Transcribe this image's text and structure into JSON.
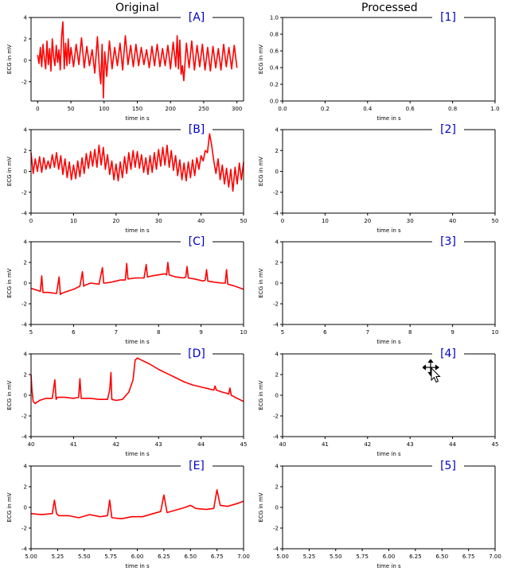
{
  "columns": {
    "left": "Original",
    "right": "Processed"
  },
  "colors": {
    "signal": "#ff0000",
    "panel_label": "#0000cc",
    "axis": "#000000"
  },
  "cursor": {
    "icon": "move-cursor-icon"
  },
  "panels": [
    {
      "label_left": "[A]",
      "label_right": "[1]",
      "xlabel": "time in s",
      "ylabel": "ECG in mV",
      "left_xticks": [
        0,
        50,
        100,
        150,
        200,
        250,
        300
      ],
      "left_xlim": [
        -10,
        310
      ],
      "left_yticks": [
        -2,
        0,
        2,
        4
      ],
      "left_ylim": [
        -3.8,
        4
      ],
      "right_xticks": [
        "0.0",
        "0.2",
        "0.4",
        "0.6",
        "0.8",
        "1.0"
      ],
      "right_xlim": [
        0,
        1
      ],
      "right_yticks": [
        "0.0",
        "0.2",
        "0.4",
        "0.6",
        "0.8",
        "1.0"
      ],
      "right_ylim": [
        0,
        1
      ]
    },
    {
      "label_left": "[B]",
      "label_right": "[2]",
      "xlabel": "time in s",
      "ylabel": "ECG in mV",
      "left_xticks": [
        0,
        10,
        20,
        30,
        40,
        50
      ],
      "left_xlim": [
        0,
        50
      ],
      "left_yticks": [
        -4,
        -2,
        0,
        2,
        4
      ],
      "left_ylim": [
        -4,
        4
      ],
      "right_xticks": [
        0,
        10,
        20,
        30,
        40,
        50
      ],
      "right_xlim": [
        0,
        50
      ],
      "right_yticks": [
        -4,
        -2,
        0,
        2,
        4
      ],
      "right_ylim": [
        -4,
        4
      ]
    },
    {
      "label_left": "[C]",
      "label_right": "[3]",
      "xlabel": "time in s",
      "ylabel": "ECG in mV",
      "left_xticks": [
        5,
        6,
        7,
        8,
        9,
        10
      ],
      "left_xlim": [
        5,
        10
      ],
      "left_yticks": [
        -4,
        -2,
        0,
        2,
        4
      ],
      "left_ylim": [
        -4,
        4
      ],
      "right_xticks": [
        5,
        6,
        7,
        8,
        9,
        10
      ],
      "right_xlim": [
        5,
        10
      ],
      "right_yticks": [
        -4,
        -2,
        0,
        2,
        4
      ],
      "right_ylim": [
        -4,
        4
      ]
    },
    {
      "label_left": "[D]",
      "label_right": "[4]",
      "xlabel": "time in s",
      "ylabel": "ECG in mV",
      "left_xticks": [
        40,
        41,
        42,
        43,
        44,
        45
      ],
      "left_xlim": [
        40,
        45
      ],
      "left_yticks": [
        -4,
        -2,
        0,
        2,
        4
      ],
      "left_ylim": [
        -4,
        4
      ],
      "right_xticks": [
        40,
        41,
        42,
        43,
        44,
        45
      ],
      "right_xlim": [
        40,
        45
      ],
      "right_yticks": [
        -4,
        -2,
        0,
        2,
        4
      ],
      "right_ylim": [
        -4,
        4
      ]
    },
    {
      "label_left": "[E]",
      "label_right": "[5]",
      "xlabel": "time in s",
      "ylabel": "ECG in mV",
      "left_xticks": [
        "5.00",
        "5.25",
        "5.50",
        "5.75",
        "6.00",
        "6.25",
        "6.50",
        "6.75",
        "7.00"
      ],
      "left_xlim": [
        5,
        7
      ],
      "left_yticks": [
        -4,
        -2,
        0,
        2,
        4
      ],
      "left_ylim": [
        -4,
        4
      ],
      "right_xticks": [
        "5.00",
        "5.25",
        "5.50",
        "5.75",
        "6.00",
        "6.25",
        "6.50",
        "6.75",
        "7.00"
      ],
      "right_xlim": [
        5,
        7
      ],
      "right_yticks": [
        -4,
        -2,
        0,
        2,
        4
      ],
      "right_ylim": [
        -4,
        4
      ]
    }
  ],
  "chart_data": [
    {
      "type": "line",
      "panel": "[A]",
      "xlabel": "time in s",
      "ylabel": "ECG in mV",
      "xlim": [
        -10,
        310
      ],
      "ylim": [
        -3.8,
        4
      ],
      "grid": false,
      "series": [
        {
          "x": [
            0,
            2,
            4,
            6,
            8,
            10,
            12,
            14,
            16,
            18,
            20,
            22,
            24,
            26,
            28,
            30,
            32,
            34,
            36,
            38,
            40,
            42,
            44,
            46,
            48,
            50,
            54,
            58,
            62,
            66,
            70,
            74,
            78,
            82,
            86,
            90,
            93,
            95,
            97,
            99,
            101,
            104,
            108,
            112,
            116,
            120,
            124,
            128,
            132,
            136,
            140,
            144,
            148,
            152,
            156,
            160,
            164,
            168,
            172,
            176,
            180,
            184,
            188,
            192,
            196,
            200,
            204,
            208,
            210,
            212,
            214,
            216,
            218,
            220,
            224,
            228,
            232,
            236,
            240,
            244,
            248,
            252,
            256,
            260,
            264,
            268,
            272,
            276,
            280,
            284,
            288,
            292,
            296,
            300
          ],
          "y": [
            0.5,
            -0.3,
            1.2,
            -0.6,
            1.5,
            0.2,
            -0.8,
            1.8,
            -0.4,
            1.1,
            -1.0,
            2.0,
            0.3,
            -0.5,
            1.4,
            -0.2,
            1.0,
            -0.9,
            2.2,
            3.6,
            -0.8,
            1.6,
            -0.5,
            2.0,
            -0.3,
            1.2,
            -0.6,
            1.5,
            -0.4,
            2.1,
            -0.7,
            1.3,
            -0.5,
            1.0,
            -1.2,
            2.2,
            -0.9,
            -2.2,
            1.5,
            -3.5,
            0.8,
            -1.5,
            1.8,
            -0.8,
            1.2,
            -0.5,
            1.6,
            -0.9,
            2.3,
            -0.4,
            1.4,
            -0.6,
            1.5,
            -0.5,
            1.2,
            -0.4,
            1.0,
            -0.7,
            1.3,
            -0.5,
            1.5,
            -0.6,
            1.1,
            -0.5,
            1.4,
            -0.8,
            1.7,
            -0.6,
            2.3,
            -0.8,
            1.9,
            -1.3,
            -0.5,
            -1.9,
            1.6,
            -0.7,
            1.8,
            -0.9,
            1.4,
            -0.6,
            1.5,
            -0.9,
            1.2,
            -1.0,
            1.3,
            -0.7,
            1.1,
            -0.9,
            1.5,
            -0.6,
            1.2,
            -0.8,
            1.4,
            -0.7
          ]
        }
      ]
    },
    {
      "type": "line",
      "panel": "[B]",
      "xlabel": "time in s",
      "ylabel": "ECG in mV",
      "xlim": [
        0,
        50
      ],
      "ylim": [
        -4,
        4
      ],
      "grid": false,
      "series": [
        {
          "x": [
            0,
            0.5,
            1,
            1.5,
            2,
            2.5,
            3,
            3.5,
            4,
            4.5,
            5,
            5.5,
            6,
            6.5,
            7,
            7.5,
            8,
            8.5,
            9,
            9.5,
            10,
            10.5,
            11,
            11.5,
            12,
            12.5,
            13,
            13.5,
            14,
            14.5,
            15,
            15.5,
            16,
            16.5,
            17,
            17.5,
            18,
            18.5,
            19,
            19.5,
            20,
            20.5,
            21,
            21.5,
            22,
            22.5,
            23,
            23.5,
            24,
            24.5,
            25,
            25.5,
            26,
            26.5,
            27,
            27.5,
            28,
            28.5,
            29,
            29.5,
            30,
            30.5,
            31,
            31.5,
            32,
            32.5,
            33,
            33.5,
            34,
            34.5,
            35,
            35.5,
            36,
            36.5,
            37,
            37.5,
            38,
            38.5,
            39,
            39.5,
            40,
            40.5,
            41,
            41.5,
            42,
            42.5,
            43,
            43.5,
            44,
            44.5,
            45,
            45.5,
            46,
            46.5,
            47,
            47.5,
            48,
            48.5,
            49,
            49.5,
            50
          ],
          "y": [
            1.8,
            -0.2,
            1.2,
            0.0,
            1.4,
            -0.1,
            1.3,
            0.2,
            1.0,
            0.3,
            1.6,
            0.4,
            1.8,
            0.2,
            1.5,
            -0.3,
            1.2,
            -0.6,
            0.9,
            -0.8,
            0.6,
            -0.7,
            1.0,
            -0.5,
            1.3,
            -0.2,
            1.7,
            0.3,
            1.9,
            0.5,
            2.1,
            0.4,
            2.5,
            0.6,
            2.3,
            0.2,
            1.6,
            -0.3,
            1.0,
            -0.8,
            0.7,
            -0.9,
            0.9,
            -0.6,
            1.4,
            -0.2,
            1.8,
            0.2,
            2.0,
            0.4,
            1.9,
            0.3,
            1.6,
            -0.1,
            1.3,
            -0.3,
            1.5,
            -0.1,
            1.8,
            0.2,
            2.1,
            0.5,
            2.3,
            0.6,
            2.5,
            0.4,
            2.0,
            0.1,
            1.5,
            -0.4,
            1.1,
            -0.8,
            0.8,
            -0.9,
            0.9,
            -0.6,
            1.1,
            -0.4,
            1.3,
            0.2,
            1.5,
            1.0,
            2.0,
            1.8,
            3.6,
            2.5,
            1.0,
            -0.2,
            1.2,
            -0.8,
            0.6,
            -1.2,
            0.3,
            -1.5,
            0.2,
            -1.9,
            0.4,
            -1.2,
            0.8,
            -0.8,
            0.9
          ]
        }
      ]
    },
    {
      "type": "line",
      "panel": "[C]",
      "xlabel": "time in s",
      "ylabel": "ECG in mV",
      "xlim": [
        5,
        10
      ],
      "ylim": [
        -4,
        4
      ],
      "grid": false,
      "series": [
        {
          "x": [
            5.0,
            5.15,
            5.22,
            5.25,
            5.28,
            5.4,
            5.6,
            5.66,
            5.69,
            5.72,
            5.85,
            6.0,
            6.15,
            6.21,
            6.24,
            6.27,
            6.4,
            6.6,
            6.68,
            6.71,
            6.74,
            6.9,
            7.1,
            7.22,
            7.25,
            7.28,
            7.45,
            7.66,
            7.71,
            7.74,
            7.85,
            8.0,
            8.15,
            8.19,
            8.22,
            8.25,
            8.4,
            8.6,
            8.64,
            8.67,
            8.7,
            8.85,
            9.05,
            9.1,
            9.13,
            9.16,
            9.3,
            9.5,
            9.57,
            9.6,
            9.63,
            9.8,
            10.0
          ],
          "y": [
            -0.5,
            -0.7,
            -0.8,
            0.7,
            -0.9,
            -0.9,
            -1.0,
            0.6,
            -1.1,
            -1.0,
            -0.8,
            -0.6,
            -0.3,
            1.1,
            -0.3,
            -0.2,
            0.0,
            -0.1,
            1.5,
            0.0,
            0.0,
            0.1,
            0.3,
            0.3,
            1.9,
            0.4,
            0.5,
            0.5,
            1.8,
            0.6,
            0.7,
            0.8,
            0.9,
            0.8,
            2.0,
            0.8,
            0.6,
            0.5,
            0.6,
            1.6,
            0.5,
            0.4,
            0.2,
            0.3,
            1.3,
            0.2,
            0.1,
            0.0,
            0.0,
            1.3,
            -0.1,
            -0.3,
            -0.6
          ]
        }
      ]
    },
    {
      "type": "line",
      "panel": "[D]",
      "xlabel": "time in s",
      "ylabel": "ECG in mV",
      "xlim": [
        40,
        45
      ],
      "ylim": [
        -4,
        4
      ],
      "grid": false,
      "series": [
        {
          "x": [
            40.0,
            40.02,
            40.05,
            40.1,
            40.2,
            40.35,
            40.5,
            40.56,
            40.59,
            40.62,
            40.8,
            41.0,
            41.12,
            41.15,
            41.18,
            41.4,
            41.6,
            41.8,
            41.85,
            41.88,
            41.9,
            42.0,
            42.15,
            42.3,
            42.4,
            42.45,
            42.5,
            42.6,
            42.8,
            43.0,
            43.2,
            43.4,
            43.6,
            43.8,
            44.0,
            44.2,
            44.3,
            44.33,
            44.36,
            44.5,
            44.6,
            44.65,
            44.68,
            44.71,
            44.85,
            45.0
          ],
          "y": [
            2.0,
            0.5,
            -0.6,
            -0.8,
            -0.5,
            -0.3,
            -0.3,
            1.5,
            -0.4,
            -0.2,
            -0.2,
            -0.3,
            -0.2,
            1.6,
            -0.3,
            -0.3,
            -0.4,
            -0.4,
            0.5,
            2.2,
            -0.4,
            -0.5,
            -0.4,
            0.3,
            1.5,
            3.4,
            3.6,
            3.4,
            3.0,
            2.5,
            2.1,
            1.7,
            1.3,
            1.0,
            0.8,
            0.6,
            0.5,
            0.9,
            0.5,
            0.3,
            0.2,
            0.1,
            0.7,
            0.0,
            -0.3,
            -0.6
          ]
        }
      ]
    },
    {
      "type": "line",
      "panel": "[E]",
      "xlabel": "time in s",
      "ylabel": "ECG in mV",
      "xlim": [
        5,
        7
      ],
      "ylim": [
        -4,
        4
      ],
      "grid": false,
      "series": [
        {
          "x": [
            5.0,
            5.1,
            5.2,
            5.22,
            5.24,
            5.26,
            5.35,
            5.45,
            5.55,
            5.65,
            5.72,
            5.74,
            5.76,
            5.85,
            5.95,
            6.05,
            6.15,
            6.22,
            6.25,
            6.28,
            6.35,
            6.45,
            6.5,
            6.55,
            6.65,
            6.72,
            6.75,
            6.78,
            6.85,
            6.95,
            7.0
          ],
          "y": [
            -0.6,
            -0.7,
            -0.6,
            0.7,
            -0.6,
            -0.8,
            -0.8,
            -1.0,
            -0.7,
            -0.9,
            -0.8,
            0.7,
            -1.0,
            -1.1,
            -0.9,
            -0.9,
            -0.6,
            -0.4,
            1.2,
            -0.5,
            -0.3,
            0.0,
            0.2,
            -0.1,
            -0.2,
            -0.1,
            1.7,
            0.2,
            0.1,
            0.4,
            0.6
          ]
        }
      ]
    },
    {
      "type": "line",
      "panel": "[1]",
      "xlabel": "time in s",
      "ylabel": "ECG in mV",
      "xlim": [
        0,
        1
      ],
      "ylim": [
        0,
        1
      ],
      "grid": false,
      "series": []
    },
    {
      "type": "line",
      "panel": "[2]",
      "xlabel": "time in s",
      "ylabel": "ECG in mV",
      "xlim": [
        0,
        50
      ],
      "ylim": [
        -4,
        4
      ],
      "grid": false,
      "series": []
    },
    {
      "type": "line",
      "panel": "[3]",
      "xlabel": "time in s",
      "ylabel": "ECG in mV",
      "xlim": [
        5,
        10
      ],
      "ylim": [
        -4,
        4
      ],
      "grid": false,
      "series": []
    },
    {
      "type": "line",
      "panel": "[4]",
      "xlabel": "time in s",
      "ylabel": "ECG in mV",
      "xlim": [
        40,
        45
      ],
      "ylim": [
        -4,
        4
      ],
      "grid": false,
      "series": []
    },
    {
      "type": "line",
      "panel": "[5]",
      "xlabel": "time in s",
      "ylabel": "ECG in mV",
      "xlim": [
        5,
        7
      ],
      "ylim": [
        -4,
        4
      ],
      "grid": false,
      "series": []
    }
  ]
}
